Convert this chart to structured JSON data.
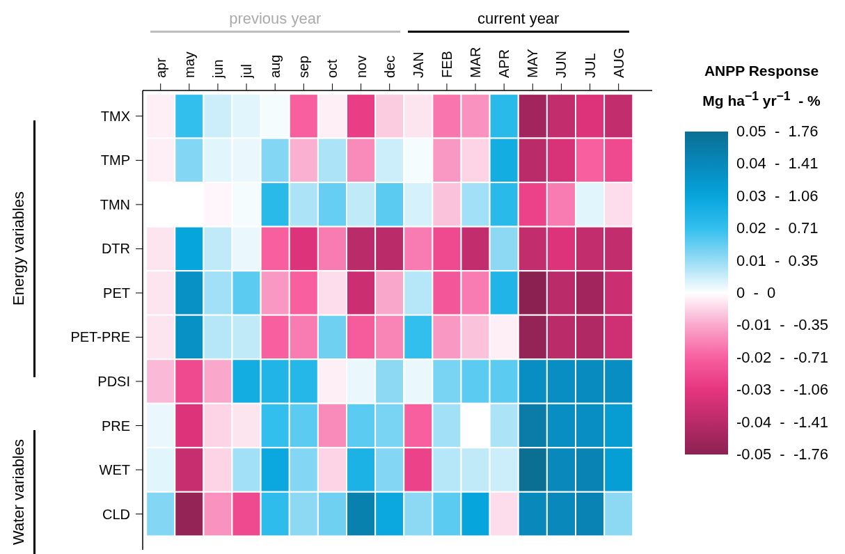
{
  "chart_data": {
    "type": "heatmap",
    "legend_title": "ANPP Response",
    "clabel": "Mg ha$^{−1}$ yr$^{−1}$  - %",
    "annotations": [
      "previous year",
      "current year",
      "Energy variables",
      "Water variables"
    ],
    "categories": [
      "apr",
      "may",
      "jun",
      "jul",
      "aug",
      "sep",
      "oct",
      "nov",
      "dec",
      "JAN",
      "FEB",
      "MAR",
      "APR",
      "MAY",
      "JUN",
      "JUL",
      "AUG"
    ],
    "y_categories": [
      "TMX",
      "TMP",
      "TMN",
      "DTR",
      "PET",
      "PET-PRE",
      "PDSI",
      "PRE",
      "WET",
      "CLD"
    ],
    "cells": [
      [
        -0.002,
        0.02,
        0.005,
        0.003,
        0.001,
        -0.02,
        -0.002,
        -0.028,
        -0.006,
        -0.003,
        -0.017,
        -0.013,
        0.022,
        -0.045,
        -0.038,
        -0.032,
        -0.038
      ],
      [
        -0.002,
        0.012,
        0.003,
        0.002,
        0.012,
        -0.009,
        0.008,
        -0.014,
        0.005,
        0.001,
        -0.012,
        -0.005,
        0.027,
        -0.04,
        -0.033,
        -0.02,
        -0.025
      ],
      [
        0,
        0,
        -0.001,
        0.001,
        0.022,
        0.008,
        0.015,
        0.006,
        0.016,
        0.004,
        -0.007,
        0.009,
        0.022,
        -0.027,
        -0.016,
        0.003,
        -0.004
      ],
      [
        -0.003,
        0.03,
        0.006,
        0.002,
        -0.02,
        -0.032,
        -0.016,
        -0.04,
        -0.04,
        -0.016,
        -0.025,
        -0.038,
        0.011,
        -0.038,
        -0.032,
        -0.038,
        -0.038
      ],
      [
        -0.003,
        0.037,
        0.009,
        0.016,
        -0.012,
        -0.02,
        -0.004,
        -0.036,
        -0.01,
        0.007,
        -0.022,
        -0.016,
        0.024,
        -0.05,
        -0.04,
        -0.045,
        -0.036
      ],
      [
        -0.003,
        0.037,
        0.007,
        0.006,
        -0.02,
        -0.016,
        0.014,
        -0.021,
        -0.015,
        0.02,
        -0.012,
        -0.007,
        -0.002,
        -0.048,
        -0.04,
        -0.042,
        -0.035
      ],
      [
        -0.008,
        -0.025,
        -0.01,
        0.027,
        0.024,
        0.023,
        -0.002,
        0.002,
        0.011,
        0.002,
        0.013,
        0.016,
        0.016,
        0.038,
        0.038,
        0.039,
        0.038
      ],
      [
        0.002,
        -0.032,
        -0.005,
        -0.003,
        0.02,
        0.016,
        -0.014,
        0.016,
        0.013,
        -0.02,
        0.009,
        0,
        0.008,
        0.045,
        0.038,
        0.038,
        0.033
      ],
      [
        0.003,
        -0.037,
        -0.005,
        0.009,
        0.029,
        0.012,
        -0.005,
        0.025,
        0.012,
        -0.027,
        0.007,
        0.006,
        0.005,
        0.05,
        0.04,
        0.042,
        0.032
      ],
      [
        0.012,
        -0.048,
        -0.013,
        -0.025,
        0.021,
        0.011,
        0.014,
        0.043,
        0.029,
        0.011,
        0.016,
        0.03,
        -0.004,
        0.04,
        0.04,
        0.042,
        0.011
      ]
    ],
    "clim": [
      -0.05,
      0.05
    ],
    "cticks": [
      {
        "value": 0.05,
        "label": "0.05  -  1.76"
      },
      {
        "value": 0.04,
        "label": "0.04  -  1.41"
      },
      {
        "value": 0.03,
        "label": "0.03  -  1.06"
      },
      {
        "value": 0.02,
        "label": "0.02  -  0.71"
      },
      {
        "value": 0.01,
        "label": "0.01  -  0.35"
      },
      {
        "value": 0,
        "label": "0  -  0"
      },
      {
        "value": -0.01,
        "label": "-0.01  -  -0.35"
      },
      {
        "value": -0.02,
        "label": "-0.02  -  -0.71"
      },
      {
        "value": -0.03,
        "label": "-0.03  -  -1.06"
      },
      {
        "value": -0.04,
        "label": "-0.04  -  -1.41"
      },
      {
        "value": -0.05,
        "label": "-0.05  -  -1.76"
      }
    ],
    "colors": [
      "#0b6f93",
      "#0888bb",
      "#06a5dc",
      "#33bfee",
      "#97dcf5",
      "#ffffff",
      "#f9a8cc",
      "#f85f9f",
      "#e5357f",
      "#b92b69",
      "#8b2151"
    ]
  }
}
